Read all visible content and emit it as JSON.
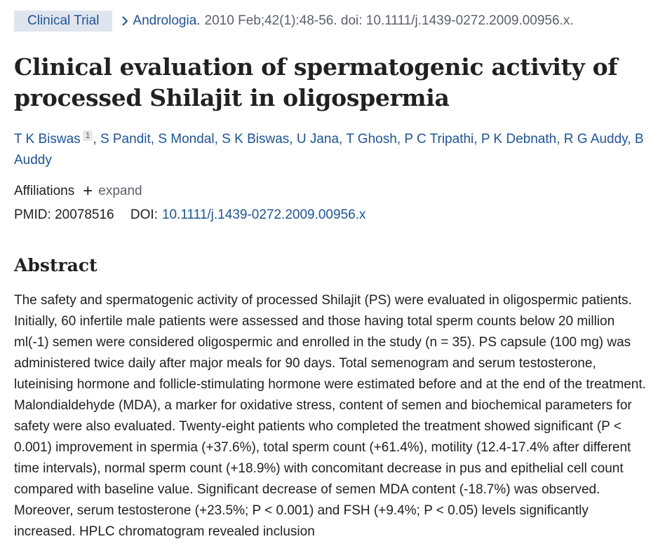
{
  "header": {
    "publication_type": "Clinical Trial",
    "journal": "Andrologia.",
    "citation": "2010 Feb;42(1):48-56. doi: 10.1111/j.1439-0272.2009.00956.x."
  },
  "article": {
    "title": "Clinical evaluation of spermatogenic activity of processed Shilajit in oligospermia",
    "authors": [
      {
        "name": "T K Biswas",
        "affiliation": "1"
      },
      {
        "name": "S Pandit"
      },
      {
        "name": "S Mondal"
      },
      {
        "name": "S K Biswas"
      },
      {
        "name": "U Jana"
      },
      {
        "name": "T Ghosh"
      },
      {
        "name": "P C Tripathi"
      },
      {
        "name": "P K Debnath"
      },
      {
        "name": "R G Auddy"
      },
      {
        "name": "B Auddy"
      }
    ],
    "affiliations_label": "Affiliations",
    "expand_label": "expand",
    "pmid_label": "PMID:",
    "pmid": "20078516",
    "doi_label": "DOI:",
    "doi": "10.1111/j.1439-0272.2009.00956.x"
  },
  "abstract": {
    "heading": "Abstract",
    "text": "The safety and spermatogenic activity of processed Shilajit (PS) were evaluated in oligospermic patients. Initially, 60 infertile male patients were assessed and those having total sperm counts below 20 million ml(-1) semen were considered oligospermic and enrolled in the study (n = 35). PS capsule (100 mg) was administered twice daily after major meals for 90 days. Total semenogram and serum testosterone, luteinising hormone and follicle-stimulating hormone were estimated before and at the end of the treatment. Malondialdehyde (MDA), a marker for oxidative stress, content of semen and biochemical parameters for safety were also evaluated. Twenty-eight patients who completed the treatment showed significant (P < 0.001) improvement in spermia (+37.6%), total sperm count (+61.4%), motility (12.4-17.4% after different time intervals), normal sperm count (+18.9%) with concomitant decrease in pus and epithelial cell count compared with baseline value. Significant decrease of semen MDA content (-18.7%) was observed. Moreover, serum testosterone (+23.5%; P < 0.001) and FSH (+9.4%; P < 0.05) levels significantly increased. HPLC chromatogram revealed inclusion"
  },
  "colors": {
    "link": "#205493",
    "badge_bg": "#dfe5ee",
    "text": "#212121",
    "muted": "#5b616b"
  }
}
